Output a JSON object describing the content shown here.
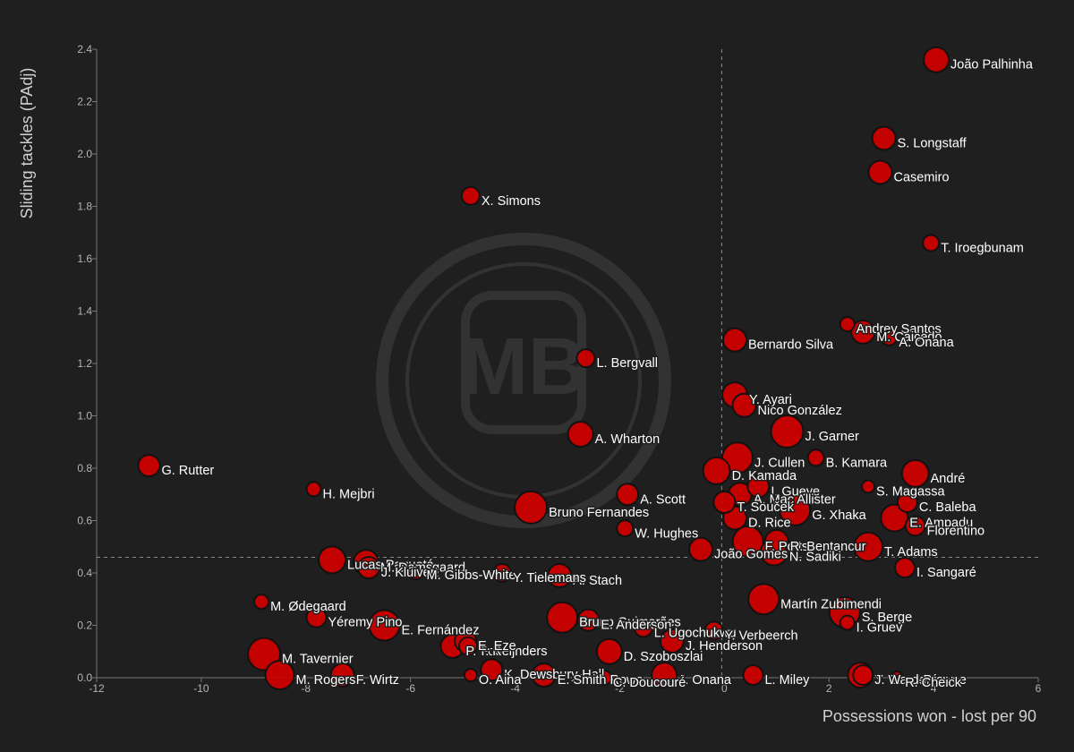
{
  "chart_data": {
    "type": "scatter",
    "title": "",
    "xlabel": "Possessions won - lost per 90",
    "ylabel": "Sliding tackles (PAdj)",
    "xlim": [
      -12,
      6
    ],
    "ylim": [
      0,
      2.4
    ],
    "xticks": [
      -12,
      -10,
      -8,
      -6,
      -4,
      -2,
      0,
      2,
      4,
      6
    ],
    "yticks": [
      0.0,
      0.2,
      0.4,
      0.6,
      0.8,
      1.0,
      1.2,
      1.4,
      1.6,
      1.8,
      2.0,
      2.2,
      2.4
    ],
    "x_reference_line": -0.05,
    "y_reference_line": 0.46,
    "grid": false,
    "watermark": "MB",
    "point_color": "#cc0000",
    "points": [
      {
        "name": "João Palhinha",
        "x": 4.05,
        "y": 2.36,
        "size": 14
      },
      {
        "name": "S. Longstaff",
        "x": 3.05,
        "y": 2.06,
        "size": 13
      },
      {
        "name": "Casemiro",
        "x": 2.98,
        "y": 1.93,
        "size": 13
      },
      {
        "name": "X. Simons",
        "x": -4.85,
        "y": 1.84,
        "size": 10
      },
      {
        "name": "T. Iroegbunam",
        "x": 3.95,
        "y": 1.66,
        "size": 9
      },
      {
        "name": "Andrey Santos",
        "x": 2.35,
        "y": 1.35,
        "size": 8
      },
      {
        "name": "M. Caicedo",
        "x": 2.65,
        "y": 1.32,
        "size": 13
      },
      {
        "name": "A. Onana",
        "x": 3.15,
        "y": 1.3,
        "size": 9
      },
      {
        "name": "Bernardo Silva",
        "x": 0.2,
        "y": 1.29,
        "size": 13
      },
      {
        "name": "L. Bergvall",
        "x": -2.65,
        "y": 1.22,
        "size": 10
      },
      {
        "name": "Y. Ayari",
        "x": 0.2,
        "y": 1.08,
        "size": 14
      },
      {
        "name": "Nico González",
        "x": 0.38,
        "y": 1.04,
        "size": 13
      },
      {
        "name": "J. Garner",
        "x": 1.2,
        "y": 0.94,
        "size": 18
      },
      {
        "name": "A. Wharton",
        "x": -2.75,
        "y": 0.93,
        "size": 14
      },
      {
        "name": "G. Rutter",
        "x": -11.0,
        "y": 0.81,
        "size": 12
      },
      {
        "name": "J. Cullen",
        "x": 0.25,
        "y": 0.84,
        "size": 17
      },
      {
        "name": "B. Kamara",
        "x": 1.75,
        "y": 0.84,
        "size": 9
      },
      {
        "name": "D. Kamada",
        "x": -0.15,
        "y": 0.79,
        "size": 15
      },
      {
        "name": "André",
        "x": 3.65,
        "y": 0.78,
        "size": 15
      },
      {
        "name": "H. Mejbri",
        "x": -7.85,
        "y": 0.72,
        "size": 8
      },
      {
        "name": "S. Magassa",
        "x": 2.75,
        "y": 0.73,
        "size": 7
      },
      {
        "name": "I. Gueye",
        "x": 0.65,
        "y": 0.73,
        "size": 12
      },
      {
        "name": "A. Scott",
        "x": -1.85,
        "y": 0.7,
        "size": 12
      },
      {
        "name": "A. Mac Allister",
        "x": 0.3,
        "y": 0.7,
        "size": 13
      },
      {
        "name": "T. Souček",
        "x": 0.0,
        "y": 0.67,
        "size": 12
      },
      {
        "name": "C. Baleba",
        "x": 3.5,
        "y": 0.67,
        "size": 11
      },
      {
        "name": "Bruno Fernandes",
        "x": -3.7,
        "y": 0.65,
        "size": 18
      },
      {
        "name": "G. Xhaka",
        "x": 1.35,
        "y": 0.64,
        "size": 17
      },
      {
        "name": "D. Rice",
        "x": 0.2,
        "y": 0.61,
        "size": 13
      },
      {
        "name": "E. Ampadu",
        "x": 3.25,
        "y": 0.61,
        "size": 15
      },
      {
        "name": "Florentino",
        "x": 3.65,
        "y": 0.58,
        "size": 11
      },
      {
        "name": "W. Hughes",
        "x": -1.9,
        "y": 0.57,
        "size": 9
      },
      {
        "name": "F. Potts",
        "x": 0.45,
        "y": 0.52,
        "size": 17
      },
      {
        "name": "R. Bentancur",
        "x": 1.0,
        "y": 0.52,
        "size": 13
      },
      {
        "name": "N. Sadiki",
        "x": 0.95,
        "y": 0.48,
        "size": 15
      },
      {
        "name": "T. Adams",
        "x": 2.75,
        "y": 0.5,
        "size": 16
      },
      {
        "name": "João Gomes",
        "x": -0.45,
        "y": 0.49,
        "size": 13
      },
      {
        "name": "Lucas Paquetá",
        "x": -7.5,
        "y": 0.45,
        "size": 15
      },
      {
        "name": "M. Damsgaard",
        "x": -6.85,
        "y": 0.44,
        "size": 14
      },
      {
        "name": "I. Sangaré",
        "x": 3.45,
        "y": 0.42,
        "size": 11
      },
      {
        "name": "J. Kluivert",
        "x": -6.8,
        "y": 0.42,
        "size": 12
      },
      {
        "name": "M. Gibbs-White",
        "x": -5.9,
        "y": 0.41,
        "size": 10
      },
      {
        "name": "A. Stach",
        "x": -3.15,
        "y": 0.39,
        "size": 13
      },
      {
        "name": "Y. Tielemans",
        "x": -4.25,
        "y": 0.4,
        "size": 10
      },
      {
        "name": "Martín Zubimendi",
        "x": 0.75,
        "y": 0.3,
        "size": 17
      },
      {
        "name": "M. Ødegaard",
        "x": -8.85,
        "y": 0.29,
        "size": 8
      },
      {
        "name": "Yéremy Pino",
        "x": -7.8,
        "y": 0.23,
        "size": 11
      },
      {
        "name": "S. Berge",
        "x": 2.3,
        "y": 0.25,
        "size": 17
      },
      {
        "name": "Bruno Guimarães",
        "x": -3.1,
        "y": 0.23,
        "size": 17
      },
      {
        "name": "E. Anderson",
        "x": -2.6,
        "y": 0.22,
        "size": 12
      },
      {
        "name": "L. Ugochukwu",
        "x": -1.55,
        "y": 0.19,
        "size": 10
      },
      {
        "name": "E. Fernández",
        "x": -6.5,
        "y": 0.2,
        "size": 17
      },
      {
        "name": "I. Gruev",
        "x": 2.35,
        "y": 0.21,
        "size": 8
      },
      {
        "name": "Y. Verbeerch",
        "x": -0.2,
        "y": 0.18,
        "size": 10
      },
      {
        "name": "J. Henderson",
        "x": -1.0,
        "y": 0.14,
        "size": 13
      },
      {
        "name": "P. Foden",
        "x": -5.2,
        "y": 0.12,
        "size": 13
      },
      {
        "name": "T. Reijnders",
        "x": -4.9,
        "y": 0.12,
        "size": 10
      },
      {
        "name": "E. Eze",
        "x": -4.95,
        "y": 0.14,
        "size": 12
      },
      {
        "name": "D. Szoboszlai",
        "x": -2.2,
        "y": 0.1,
        "size": 14
      },
      {
        "name": "M. Tavernier",
        "x": -8.8,
        "y": 0.09,
        "size": 18
      },
      {
        "name": "K. Dewsbury-Hall",
        "x": -4.45,
        "y": 0.03,
        "size": 12
      },
      {
        "name": "E. Smith Rowe",
        "x": -3.45,
        "y": 0.01,
        "size": 13
      },
      {
        "name": "F. Wirtz",
        "x": -7.3,
        "y": 0.01,
        "size": 13
      },
      {
        "name": "M. Rogers",
        "x": -8.5,
        "y": 0.01,
        "size": 16
      },
      {
        "name": "J. Onana",
        "x": -1.15,
        "y": 0.01,
        "size": 14
      },
      {
        "name": "L. Miley",
        "x": 0.55,
        "y": 0.01,
        "size": 11
      },
      {
        "name": "Y. Sangaré",
        "x": 2.6,
        "y": 0.01,
        "size": 14
      },
      {
        "name": "J. Ward-Prowse",
        "x": 2.65,
        "y": 0.01,
        "size": 11
      },
      {
        "name": "O. Aina",
        "x": -4.85,
        "y": 0.01,
        "size": 7
      },
      {
        "name": "C. Doucouré",
        "x": -2.3,
        "y": 0.0,
        "size": 8
      },
      {
        "name": "R. Cheick",
        "x": 3.3,
        "y": 0.0,
        "size": 7
      }
    ]
  }
}
